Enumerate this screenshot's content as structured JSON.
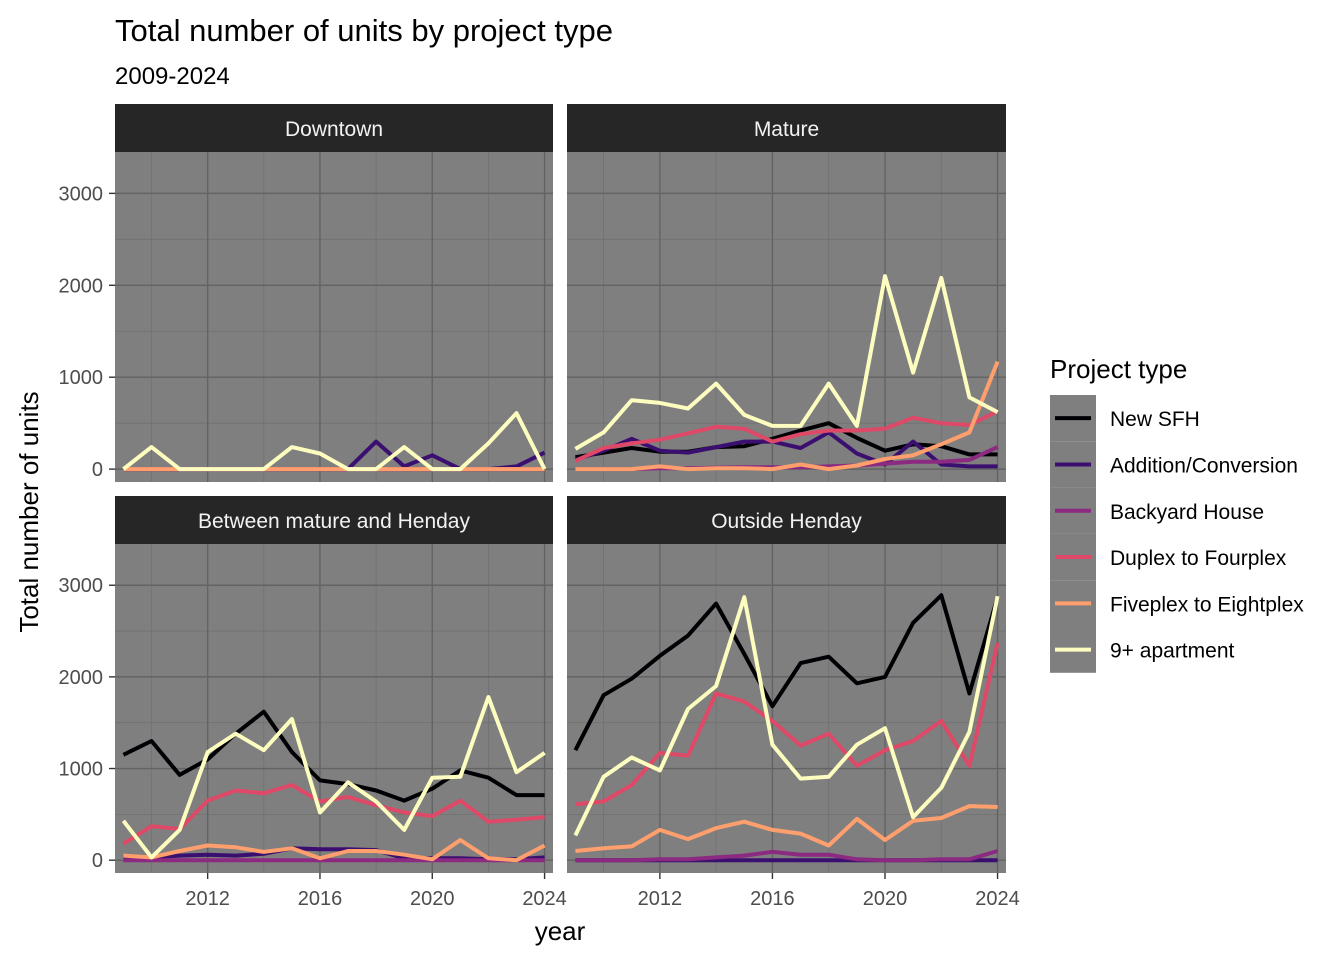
{
  "chart_data": {
    "type": "line",
    "title": "Total number of units by project type",
    "subtitle": "2009-2024",
    "xlabel": "year",
    "ylabel": "Total number of units",
    "xlim": [
      2008.7,
      2024.3
    ],
    "ylim": [
      -140,
      3450
    ],
    "x_ticks": [
      2012,
      2016,
      2020,
      2024
    ],
    "y_ticks": [
      0,
      1000,
      2000,
      3000
    ],
    "grid": true,
    "legend_position": "right",
    "legend_title": "Project type",
    "x": [
      2009,
      2010,
      2011,
      2012,
      2013,
      2014,
      2015,
      2016,
      2017,
      2018,
      2019,
      2020,
      2021,
      2022,
      2023,
      2024
    ],
    "series_styles": [
      {
        "name": "New SFH",
        "color": "#000004"
      },
      {
        "name": "Addition/Conversion",
        "color": "#3b0f70"
      },
      {
        "name": "Backyard House",
        "color": "#8c2981"
      },
      {
        "name": "Duplex to Fourplex",
        "color": "#de4968"
      },
      {
        "name": "Fiveplex to Eightplex",
        "color": "#fe9f6d"
      },
      {
        "name": "9+ apartment",
        "color": "#fcfdbf"
      }
    ],
    "panels": [
      {
        "label": "Downtown",
        "series": [
          {
            "name": "New SFH",
            "values": [
              0,
              0,
              0,
              0,
              0,
              0,
              0,
              0,
              0,
              0,
              0,
              0,
              0,
              0,
              0,
              0
            ]
          },
          {
            "name": "Addition/Conversion",
            "values": [
              0,
              0,
              0,
              0,
              0,
              0,
              0,
              0,
              0,
              300,
              30,
              150,
              0,
              0,
              30,
              180
            ]
          },
          {
            "name": "Backyard House",
            "values": [
              0,
              0,
              0,
              0,
              0,
              0,
              0,
              0,
              0,
              0,
              0,
              0,
              0,
              0,
              0,
              0
            ]
          },
          {
            "name": "Duplex to Fourplex",
            "values": [
              0,
              0,
              0,
              0,
              0,
              0,
              0,
              0,
              0,
              0,
              0,
              0,
              0,
              0,
              0,
              0
            ]
          },
          {
            "name": "Fiveplex to Eightplex",
            "values": [
              0,
              0,
              0,
              0,
              0,
              0,
              0,
              0,
              0,
              0,
              0,
              0,
              0,
              0,
              0,
              0
            ]
          },
          {
            "name": "9+ apartment",
            "values": [
              0,
              240,
              0,
              0,
              0,
              0,
              240,
              170,
              0,
              0,
              240,
              0,
              0,
              280,
              610,
              0
            ]
          }
        ]
      },
      {
        "label": "Mature",
        "series": [
          {
            "name": "New SFH",
            "values": [
              130,
              180,
              230,
              190,
              190,
              240,
              250,
              330,
              420,
              500,
              340,
              200,
              270,
              250,
              160,
              160
            ]
          },
          {
            "name": "Addition/Conversion",
            "values": [
              100,
              200,
              330,
              200,
              180,
              240,
              300,
              300,
              230,
              400,
              170,
              50,
              300,
              50,
              30,
              30
            ]
          },
          {
            "name": "Backyard House",
            "values": [
              0,
              0,
              0,
              10,
              10,
              15,
              20,
              20,
              20,
              30,
              40,
              60,
              80,
              80,
              100,
              240
            ]
          },
          {
            "name": "Duplex to Fourplex",
            "values": [
              90,
              230,
              280,
              320,
              390,
              460,
              440,
              300,
              380,
              420,
              420,
              440,
              560,
              500,
              480,
              630
            ]
          },
          {
            "name": "Fiveplex to Eightplex",
            "values": [
              0,
              0,
              0,
              30,
              0,
              10,
              10,
              0,
              50,
              0,
              40,
              110,
              150,
              270,
              400,
              1170
            ]
          },
          {
            "name": "9+ apartment",
            "values": [
              220,
              400,
              750,
              720,
              660,
              930,
              590,
              470,
              470,
              930,
              470,
              2100,
              1050,
              2080,
              780,
              620
            ]
          }
        ]
      },
      {
        "label": "Between mature and Henday",
        "series": [
          {
            "name": "New SFH",
            "values": [
              1150,
              1300,
              930,
              1100,
              1380,
              1620,
              1180,
              870,
              830,
              760,
              650,
              780,
              980,
              900,
              710,
              710
            ]
          },
          {
            "name": "Addition/Conversion",
            "values": [
              30,
              30,
              50,
              60,
              50,
              70,
              130,
              120,
              120,
              110,
              20,
              20,
              20,
              10,
              10,
              30
            ]
          },
          {
            "name": "Backyard House",
            "values": [
              0,
              0,
              0,
              0,
              0,
              0,
              0,
              0,
              0,
              0,
              0,
              0,
              0,
              0,
              0,
              0
            ]
          },
          {
            "name": "Duplex to Fourplex",
            "values": [
              180,
              370,
              340,
              650,
              760,
              730,
              820,
              640,
              690,
              600,
              520,
              480,
              650,
              420,
              440,
              470
            ]
          },
          {
            "name": "Fiveplex to Eightplex",
            "values": [
              50,
              30,
              100,
              160,
              140,
              90,
              130,
              20,
              100,
              100,
              60,
              10,
              220,
              20,
              0,
              160
            ]
          },
          {
            "name": "9+ apartment",
            "values": [
              430,
              30,
              330,
              1180,
              1380,
              1200,
              1540,
              520,
              850,
              640,
              330,
              900,
              910,
              1780,
              960,
              1170
            ]
          }
        ]
      },
      {
        "label": "Outside Henday",
        "series": [
          {
            "name": "New SFH",
            "values": [
              1200,
              1800,
              1980,
              2230,
              2450,
              2800,
              2250,
              1680,
              2150,
              2220,
              1930,
              2000,
              2590,
              2890,
              1820,
              2870
            ]
          },
          {
            "name": "Addition/Conversion",
            "values": [
              0,
              0,
              0,
              0,
              0,
              0,
              0,
              0,
              0,
              0,
              0,
              0,
              0,
              0,
              0,
              0
            ]
          },
          {
            "name": "Backyard House",
            "values": [
              0,
              0,
              0,
              10,
              10,
              30,
              50,
              90,
              60,
              60,
              10,
              0,
              0,
              10,
              10,
              100
            ]
          },
          {
            "name": "Duplex to Fourplex",
            "values": [
              610,
              640,
              820,
              1170,
              1140,
              1820,
              1730,
              1520,
              1250,
              1380,
              1030,
              1200,
              1300,
              1520,
              1030,
              2370
            ]
          },
          {
            "name": "Fiveplex to Eightplex",
            "values": [
              100,
              130,
              150,
              330,
              230,
              350,
              420,
              330,
              290,
              160,
              450,
              220,
              430,
              460,
              590,
              580
            ]
          },
          {
            "name": "9+ apartment",
            "values": [
              270,
              910,
              1120,
              980,
              1650,
              1900,
              2870,
              1260,
              890,
              910,
              1260,
              1440,
              470,
              790,
              1400,
              2880
            ]
          }
        ]
      }
    ]
  }
}
